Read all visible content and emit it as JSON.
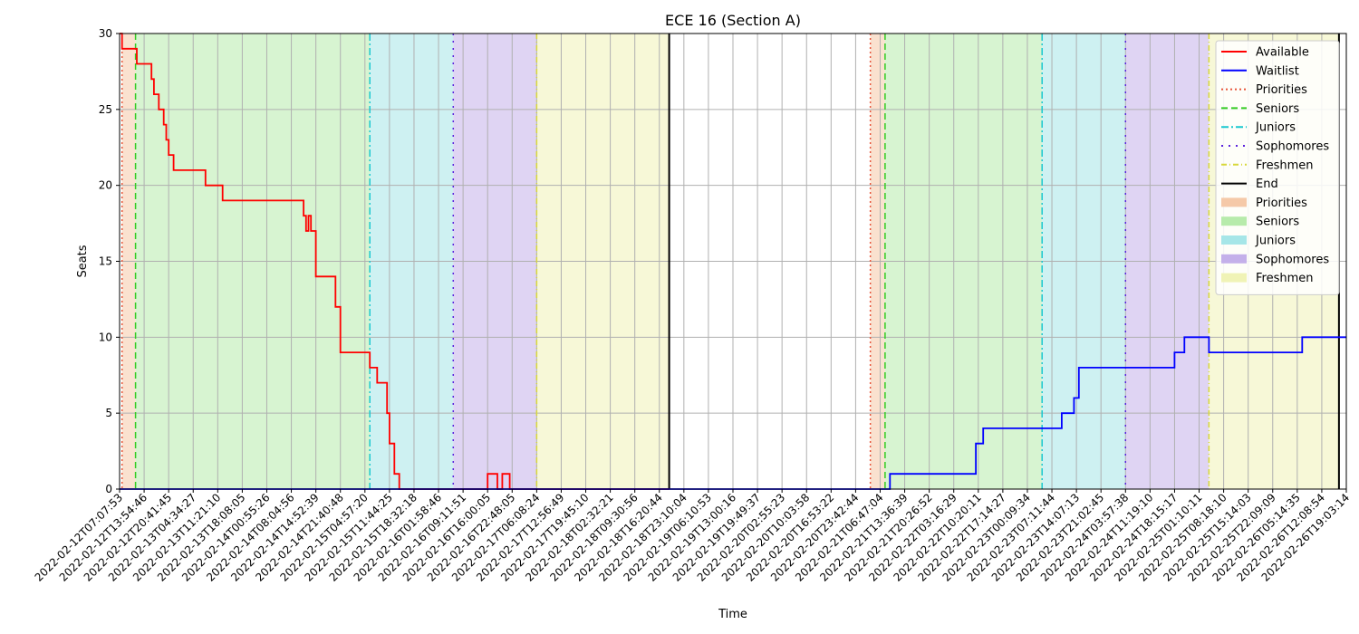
{
  "chart_data": {
    "type": "line",
    "title": "ECE 16 (Section A)",
    "xlabel": "Time",
    "ylabel": "Seats",
    "ylim": [
      0,
      30
    ],
    "yticks": [
      0,
      5,
      10,
      15,
      20,
      25,
      30
    ],
    "grid": true,
    "legend_position": "top-right",
    "xlim": [
      0,
      50
    ],
    "xtick_labels": [
      "2022-02-12T07:07:53",
      "2022-02-12T13:54:46",
      "2022-02-12T20:41:45",
      "2022-02-13T04:34:27",
      "2022-02-13T11:21:10",
      "2022-02-13T18:08:05",
      "2022-02-14T00:55:26",
      "2022-02-14T08:04:56",
      "2022-02-14T14:52:39",
      "2022-02-14T21:40:48",
      "2022-02-15T04:57:20",
      "2022-02-15T11:44:25",
      "2022-02-15T18:32:18",
      "2022-02-16T01:58:46",
      "2022-02-16T09:11:51",
      "2022-02-16T16:00:05",
      "2022-02-16T22:48:05",
      "2022-02-17T06:08:24",
      "2022-02-17T12:56:49",
      "2022-02-17T19:45:10",
      "2022-02-18T02:32:21",
      "2022-02-18T09:30:56",
      "2022-02-18T16:20:44",
      "2022-02-18T23:10:04",
      "2022-02-19T06:10:53",
      "2022-02-19T13:00:16",
      "2022-02-19T19:49:37",
      "2022-02-20T02:55:23",
      "2022-02-20T10:03:58",
      "2022-02-20T16:53:22",
      "2022-02-20T23:42:44",
      "2022-02-21T06:47:04",
      "2022-02-21T13:36:39",
      "2022-02-21T20:26:52",
      "2022-02-22T03:16:29",
      "2022-02-22T10:20:11",
      "2022-02-22T17:14:27",
      "2022-02-23T00:09:34",
      "2022-02-23T07:11:44",
      "2022-02-23T14:07:13",
      "2022-02-23T21:02:45",
      "2022-02-24T03:57:38",
      "2022-02-24T11:19:10",
      "2022-02-24T18:15:17",
      "2022-02-25T01:10:11",
      "2022-02-25T08:18:10",
      "2022-02-25T15:14:03",
      "2022-02-25T22:09:09",
      "2022-02-26T05:14:35",
      "2022-02-26T12:08:54",
      "2022-02-26T19:03:14"
    ],
    "phases": [
      {
        "name": "Priorities",
        "start": 0.1,
        "end": 0.65,
        "fill": "#f5c9a8",
        "line": "#e8553a",
        "dash": "2,3"
      },
      {
        "name": "Seniors",
        "start": 0.65,
        "end": 10.2,
        "fill": "#b7ebab",
        "line": "#33cc22",
        "dash": "7,4"
      },
      {
        "name": "Juniors",
        "start": 10.2,
        "end": 13.6,
        "fill": "#a6e6e8",
        "line": "#1ac8d0",
        "dash": "8,3,2,3"
      },
      {
        "name": "Sophomores",
        "start": 13.6,
        "end": 17.0,
        "fill": "#c4b0ea",
        "line": "#5a22dd",
        "dash": "2,6"
      },
      {
        "name": "Freshmen",
        "start": 17.0,
        "end": 22.4,
        "fill": "#f0f3b6",
        "line": "#d8d83a",
        "dash": "6,3,1,3"
      },
      {
        "name": "Priorities",
        "start": 30.6,
        "end": 31.2,
        "fill": "#f5c9a8",
        "line": "#e8553a",
        "dash": "2,3"
      },
      {
        "name": "Seniors",
        "start": 31.2,
        "end": 37.6,
        "fill": "#b7ebab",
        "line": "#33cc22",
        "dash": "7,4"
      },
      {
        "name": "Juniors",
        "start": 37.6,
        "end": 41.0,
        "fill": "#a6e6e8",
        "line": "#1ac8d0",
        "dash": "8,3,2,3"
      },
      {
        "name": "Sophomores",
        "start": 41.0,
        "end": 44.4,
        "fill": "#c4b0ea",
        "line": "#5a22dd",
        "dash": "2,6"
      },
      {
        "name": "Freshmen",
        "start": 44.4,
        "end": 49.7,
        "fill": "#f0f3b6",
        "line": "#d8d83a",
        "dash": "6,3,1,3"
      }
    ],
    "end_lines": [
      22.4,
      49.7
    ],
    "series": [
      {
        "name": "Available",
        "color": "#ff0000",
        "x": [
          0,
          0.1,
          0.1,
          0.7,
          0.7,
          1.3,
          1.3,
          1.4,
          1.4,
          1.6,
          1.6,
          1.8,
          1.8,
          1.9,
          1.9,
          2.0,
          2.0,
          2.2,
          2.2,
          3.5,
          3.5,
          4.2,
          4.2,
          7.5,
          7.5,
          7.6,
          7.6,
          7.7,
          7.7,
          7.8,
          7.8,
          8.0,
          8.0,
          8.8,
          8.8,
          9.0,
          9.0,
          10.2,
          10.2,
          10.5,
          10.5,
          10.9,
          10.9,
          11.0,
          11.0,
          11.2,
          11.2,
          11.4,
          11.4,
          15.0,
          15.0,
          15.4,
          15.4,
          15.6,
          15.6,
          15.9,
          15.9,
          22.4
        ],
        "y": [
          30,
          30,
          29,
          29,
          28,
          28,
          27,
          27,
          26,
          26,
          25,
          25,
          24,
          24,
          23,
          23,
          22,
          22,
          21,
          21,
          20,
          20,
          19,
          19,
          18,
          18,
          17,
          17,
          18,
          18,
          17,
          17,
          14,
          14,
          12,
          12,
          9,
          9,
          8,
          8,
          7,
          7,
          5,
          5,
          3,
          3,
          1,
          1,
          0,
          0,
          1,
          1,
          0,
          0,
          1,
          1,
          0,
          0
        ]
      },
      {
        "name": "Waitlist",
        "color": "#0000ff",
        "x": [
          0,
          31.4,
          31.4,
          34.9,
          34.9,
          35.2,
          35.2,
          38.4,
          38.4,
          38.9,
          38.9,
          39.1,
          39.1,
          39.2,
          39.2,
          43.0,
          43.0,
          43.4,
          43.4,
          44.4,
          44.4,
          48.2,
          48.2,
          50
        ],
        "y": [
          0,
          0,
          1,
          1,
          3,
          3,
          4,
          4,
          5,
          5,
          6,
          6,
          8,
          8,
          8,
          8,
          9,
          9,
          10,
          10,
          9,
          9,
          10,
          10
        ]
      }
    ],
    "legend": [
      {
        "label": "Available",
        "kind": "line",
        "color": "#ff0000",
        "dash": ""
      },
      {
        "label": "Waitlist",
        "kind": "line",
        "color": "#0000ff",
        "dash": ""
      },
      {
        "label": "Priorities",
        "kind": "line",
        "color": "#e8553a",
        "dash": "2,3"
      },
      {
        "label": "Seniors",
        "kind": "line",
        "color": "#33cc22",
        "dash": "7,4"
      },
      {
        "label": "Juniors",
        "kind": "line",
        "color": "#1ac8d0",
        "dash": "8,3,2,3"
      },
      {
        "label": "Sophomores",
        "kind": "line",
        "color": "#5a22dd",
        "dash": "2,6"
      },
      {
        "label": "Freshmen",
        "kind": "line",
        "color": "#d8d83a",
        "dash": "6,3,1,3"
      },
      {
        "label": "End",
        "kind": "line",
        "color": "#000000",
        "dash": ""
      },
      {
        "label": "Priorities",
        "kind": "patch",
        "color": "#f5c9a8"
      },
      {
        "label": "Seniors",
        "kind": "patch",
        "color": "#b7ebab"
      },
      {
        "label": "Juniors",
        "kind": "patch",
        "color": "#a6e6e8"
      },
      {
        "label": "Sophomores",
        "kind": "patch",
        "color": "#c4b0ea"
      },
      {
        "label": "Freshmen",
        "kind": "patch",
        "color": "#f0f3b6"
      }
    ]
  }
}
